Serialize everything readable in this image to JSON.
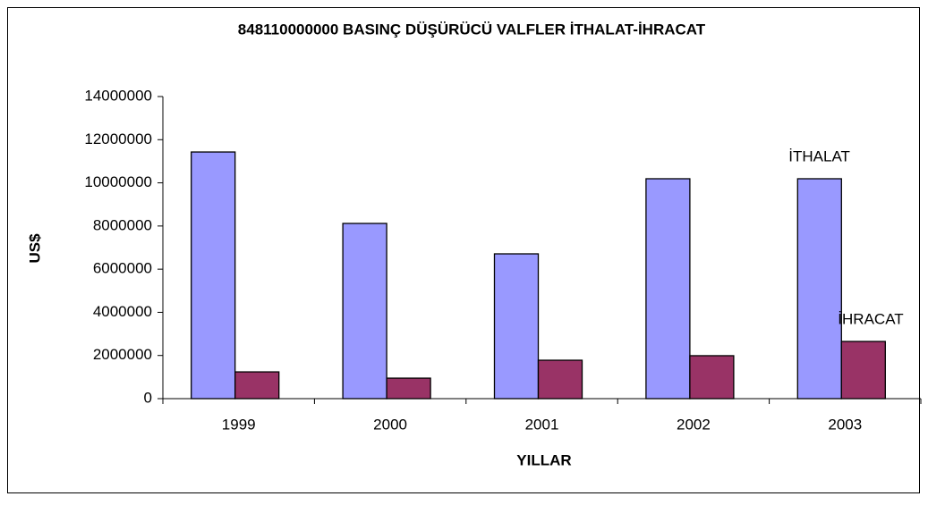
{
  "chart_data": {
    "type": "bar",
    "title": "848110000000 BASINÇ DÜŞÜRÜCÜ VALFLER İTHALAT-İHRACAT",
    "x_label": "YILLAR",
    "y_label": "US$",
    "categories": [
      "1999",
      "2000",
      "2001",
      "2002",
      "2003"
    ],
    "series": [
      {
        "name": "İTHALAT",
        "color": "#9999ff",
        "values": [
          11430000,
          8120000,
          6710000,
          10190000,
          10190000
        ]
      },
      {
        "name": "İHRACAT",
        "color": "#993366",
        "values": [
          1240000,
          950000,
          1780000,
          1990000,
          2650000
        ]
      }
    ],
    "ylim": [
      0,
      14000000
    ],
    "yticks": [
      0,
      2000000,
      4000000,
      6000000,
      8000000,
      10000000,
      12000000,
      14000000
    ],
    "grid": false
  }
}
